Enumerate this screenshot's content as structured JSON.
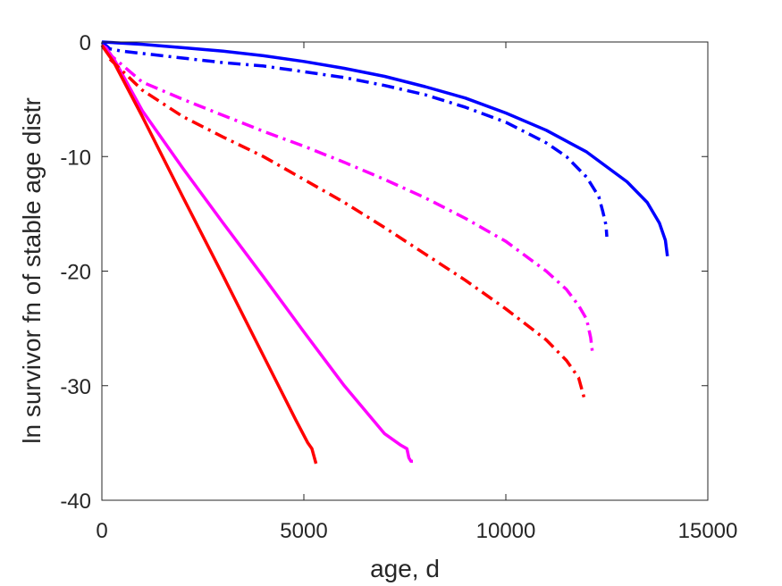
{
  "chart_data": {
    "type": "line",
    "title": "",
    "xlabel": "age, d",
    "ylabel": "ln survivor fn of stable age distr",
    "xlim": [
      0,
      15000
    ],
    "ylim": [
      -40,
      0
    ],
    "xticks": [
      0,
      5000,
      10000,
      15000
    ],
    "yticks": [
      0,
      -10,
      -20,
      -30,
      -40
    ],
    "xtick_labels": [
      "0",
      "5000",
      "10000",
      "15000"
    ],
    "ytick_labels": [
      "0",
      "-10",
      "-20",
      "-30",
      "-40"
    ],
    "grid": false,
    "legend": "none",
    "series": [
      {
        "color": "#0000ff",
        "style": "solid",
        "x": [
          0,
          1000,
          2000,
          3000,
          4000,
          5000,
          6000,
          7000,
          8000,
          9000,
          10000,
          11000,
          12000,
          13000,
          13500,
          13800,
          13950,
          14000
        ],
        "y": [
          0,
          -0.2,
          -0.5,
          -0.8,
          -1.2,
          -1.7,
          -2.3,
          -3.0,
          -3.9,
          -4.9,
          -6.2,
          -7.7,
          -9.6,
          -12.2,
          -14.0,
          -15.8,
          -17.3,
          -18.7
        ]
      },
      {
        "color": "#0000ff",
        "style": "dashdot",
        "x": [
          0,
          200,
          500,
          1000,
          2000,
          3000,
          4000,
          5000,
          6000,
          7000,
          8000,
          9000,
          10000,
          11000,
          11500,
          12000,
          12300,
          12400,
          12480,
          12500
        ],
        "y": [
          0,
          -0.6,
          -0.8,
          -1.0,
          -1.4,
          -1.8,
          -2.1,
          -2.6,
          -3.1,
          -3.8,
          -4.6,
          -5.7,
          -7.0,
          -8.8,
          -10.0,
          -11.8,
          -13.5,
          -14.8,
          -16.0,
          -17.0
        ]
      },
      {
        "color": "#ff00ff",
        "style": "solid",
        "x": [
          0,
          100,
          300,
          1000,
          2000,
          3000,
          4000,
          5000,
          6000,
          7000,
          7400,
          7550,
          7600,
          7650,
          7700
        ],
        "y": [
          -0.3,
          -0.5,
          -1.5,
          -6.0,
          -11.0,
          -15.8,
          -20.5,
          -25.3,
          -30.0,
          -34.2,
          -35.2,
          -35.5,
          -36.3,
          -36.6,
          -36.6
        ]
      },
      {
        "color": "#ff00ff",
        "style": "dashdot",
        "x": [
          100,
          500,
          1000,
          2000,
          3000,
          4000,
          5000,
          6000,
          7000,
          8000,
          9000,
          10000,
          11000,
          11500,
          11800,
          12000,
          12100,
          12150
        ],
        "y": [
          -0.8,
          -2.0,
          -3.5,
          -5.0,
          -6.4,
          -7.8,
          -9.1,
          -10.5,
          -12.0,
          -13.6,
          -15.4,
          -17.4,
          -20.0,
          -21.6,
          -23.0,
          -24.2,
          -25.8,
          -27.3
        ]
      },
      {
        "color": "#ff0000",
        "style": "solid",
        "x": [
          0,
          100,
          300,
          1000,
          2000,
          3000,
          4000,
          4800,
          5100,
          5200,
          5300
        ],
        "y": [
          -0.3,
          -0.8,
          -1.8,
          -6.5,
          -13.5,
          -20.4,
          -27.4,
          -33.0,
          -35.0,
          -35.5,
          -36.8
        ]
      },
      {
        "color": "#ff0000",
        "style": "dashdot",
        "x": [
          200,
          500,
          1000,
          2000,
          3000,
          4000,
          5000,
          6000,
          7000,
          8000,
          9000,
          10000,
          11000,
          11500,
          11800,
          11950
        ],
        "y": [
          -1.5,
          -2.5,
          -4.2,
          -6.5,
          -8.3,
          -10.0,
          -12.0,
          -14.0,
          -16.2,
          -18.5,
          -20.8,
          -23.3,
          -26.0,
          -27.8,
          -29.3,
          -31.2
        ]
      }
    ]
  }
}
